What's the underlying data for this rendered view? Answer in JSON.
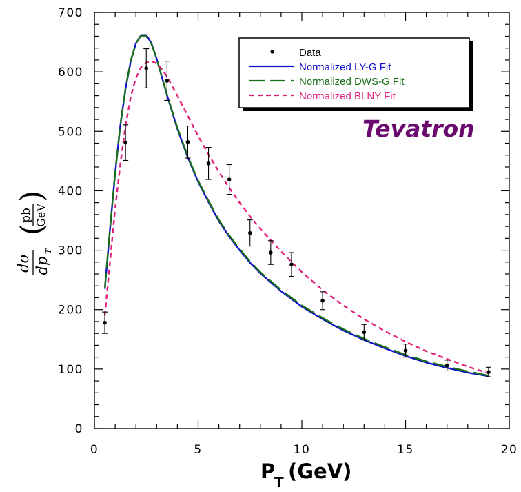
{
  "chart_data": {
    "type": "line",
    "xlabel": "P",
    "xlabel_subscript": "T",
    "xlabel_unit": "(GeV)",
    "ylabel_lhs_num": "dσ",
    "ylabel_lhs_den": "dp",
    "ylabel_lhs_den_sub": "T",
    "ylabel_unit_num": "pb",
    "ylabel_unit_den": "GeV",
    "xlim": [
      0,
      20
    ],
    "ylim": [
      0,
      700
    ],
    "x_ticks": [
      0,
      5,
      10,
      15,
      20
    ],
    "x_tick_labels": [
      "0",
      "5",
      "10",
      "15",
      "20"
    ],
    "y_ticks": [
      0,
      100,
      200,
      300,
      400,
      500,
      600,
      700
    ],
    "y_tick_labels": [
      "0",
      "100",
      "200",
      "300",
      "400",
      "500",
      "600",
      "700"
    ],
    "annotation": "Tevatron",
    "legend_position": "top-right",
    "series": [
      {
        "name": "Data",
        "kind": "points",
        "color": "#000000",
        "x": [
          0.5,
          1.5,
          2.5,
          3.5,
          4.5,
          5.5,
          6.5,
          7.5,
          8.5,
          9.5,
          11,
          13,
          15,
          17,
          19
        ],
        "y": [
          178,
          481,
          606,
          585,
          482,
          446,
          419,
          329,
          296,
          276,
          215,
          162,
          131,
          106,
          95
        ],
        "yerr": [
          18,
          30,
          33,
          33,
          27,
          27,
          25,
          22,
          20,
          20,
          15,
          13,
          11,
          9,
          8
        ]
      },
      {
        "name": "Normalized LY-G Fit",
        "kind": "solid",
        "color": "#1010c8",
        "x": [
          0.5,
          0.75,
          1.0,
          1.25,
          1.5,
          1.75,
          2.0,
          2.25,
          2.5,
          2.75,
          3.0,
          3.5,
          4.0,
          4.5,
          5.0,
          5.5,
          6.0,
          6.5,
          7.0,
          7.5,
          8.0,
          9.0,
          10,
          11,
          12,
          13,
          14,
          15,
          16,
          17,
          18,
          19
        ],
        "y": [
          235,
          335,
          430,
          510,
          572,
          618,
          648,
          662,
          662,
          648,
          622,
          561,
          504,
          456,
          415,
          381,
          349,
          323,
          300,
          279,
          261,
          231,
          205,
          184,
          165,
          149,
          135,
          122,
          111,
          102,
          94,
          88
        ]
      },
      {
        "name": "Normalized DWS-G Fit",
        "kind": "long-dash",
        "color": "#1a6e1a",
        "x": [
          0.5,
          0.75,
          1.0,
          1.25,
          1.5,
          1.75,
          2.0,
          2.25,
          2.5,
          2.75,
          3.0,
          3.5,
          4.0,
          4.5,
          5.0,
          5.5,
          6.0,
          6.5,
          7.0,
          7.5,
          8.0,
          9.0,
          10,
          11,
          12,
          13,
          14,
          15,
          16,
          17,
          18,
          19
        ],
        "y": [
          236,
          336,
          431,
          511,
          573,
          619,
          648,
          661,
          660,
          647,
          622,
          562,
          506,
          458,
          417,
          383,
          351,
          325,
          302,
          281,
          263,
          233,
          207,
          186,
          167,
          151,
          137,
          124,
          113,
          104,
          96,
          89
        ]
      },
      {
        "name": "Normalized BLNY Fit",
        "kind": "short-dash",
        "color": "#e0207a",
        "x": [
          0.5,
          0.75,
          1.0,
          1.25,
          1.5,
          1.75,
          2.0,
          2.25,
          2.5,
          2.75,
          3.0,
          3.25,
          3.5,
          4.0,
          4.5,
          5.0,
          5.5,
          6.0,
          6.5,
          7.0,
          7.5,
          8.0,
          9.0,
          10,
          11,
          12,
          13,
          14,
          15,
          16,
          17,
          18,
          19
        ],
        "y": [
          190,
          280,
          370,
          445,
          510,
          558,
          590,
          608,
          616,
          618,
          614,
          605,
          592,
          560,
          526,
          492,
          461,
          432,
          405,
          380,
          357,
          336,
          298,
          263,
          233,
          207,
          184,
          164,
          146,
          130,
          117,
          104,
          93
        ]
      }
    ]
  }
}
